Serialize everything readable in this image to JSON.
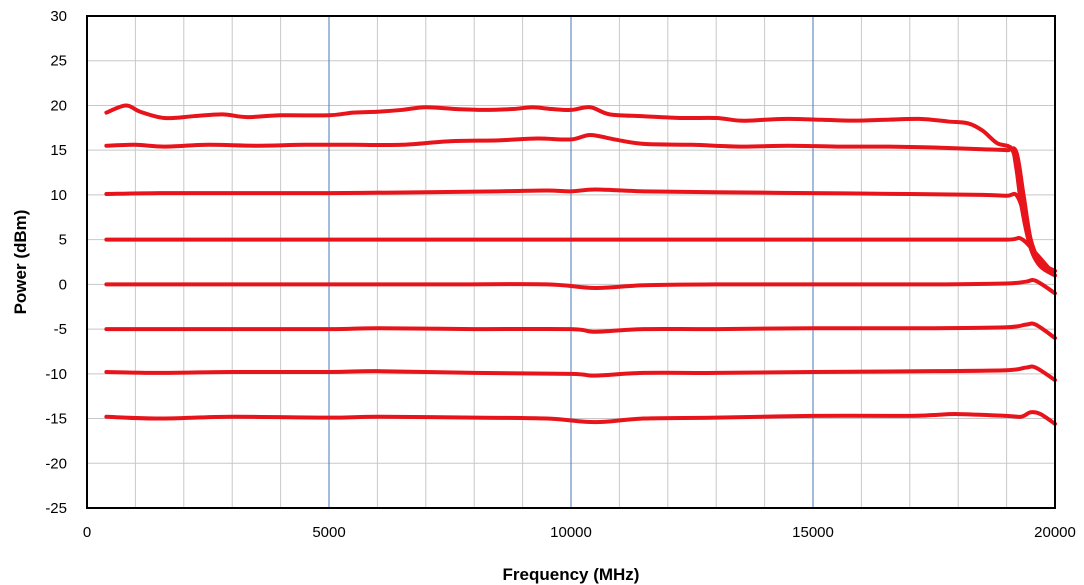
{
  "chart_data": {
    "type": "line",
    "title": "",
    "xlabel": "Frequency (MHz)",
    "ylabel": "Power (dBm)",
    "xlim": [
      0,
      20000
    ],
    "ylim": [
      -25,
      30
    ],
    "x_minor_step": 1000,
    "x_major_step": 5000,
    "y_step": 5,
    "x_tick_labels": [
      "0",
      "5000",
      "10000",
      "15000",
      "20000"
    ],
    "y_tick_labels": [
      "30",
      "25",
      "20",
      "15",
      "10",
      "5",
      "0",
      "-5",
      "-10",
      "-15",
      "-20",
      "-25"
    ],
    "grid": true,
    "legend": false,
    "line_color": "#e8141b",
    "series": [
      {
        "x": [
          400,
          800,
          1100,
          1600,
          2200,
          2800,
          3300,
          4000,
          5000,
          5500,
          6000,
          6500,
          7000,
          7600,
          8200,
          8800,
          9200,
          9600,
          10000,
          10400,
          10800,
          11500,
          12300,
          13000,
          13500,
          14000,
          14500,
          15200,
          15800,
          16500,
          17200,
          17800,
          18200,
          18500,
          18800,
          19100,
          19200,
          19300,
          19450,
          19600,
          19800,
          20000
        ],
        "y": [
          19.2,
          20.0,
          19.3,
          18.6,
          18.8,
          19.0,
          18.7,
          18.9,
          18.9,
          19.2,
          19.3,
          19.5,
          19.8,
          19.6,
          19.5,
          19.6,
          19.8,
          19.6,
          19.5,
          19.8,
          19.0,
          18.8,
          18.6,
          18.6,
          18.3,
          18.4,
          18.5,
          18.4,
          18.3,
          18.4,
          18.5,
          18.2,
          18.0,
          17.2,
          15.8,
          15.2,
          13.0,
          9.0,
          5.0,
          3.0,
          2.0,
          1.5
        ]
      },
      {
        "x": [
          400,
          1000,
          1600,
          2500,
          3500,
          4500,
          5500,
          6500,
          7500,
          8500,
          9300,
          10000,
          10400,
          10900,
          11500,
          12500,
          13500,
          14500,
          15500,
          16500,
          17500,
          18500,
          19000,
          19200,
          19350,
          19500,
          19700,
          20000
        ],
        "y": [
          15.5,
          15.6,
          15.4,
          15.6,
          15.5,
          15.6,
          15.6,
          15.6,
          16.0,
          16.1,
          16.3,
          16.2,
          16.7,
          16.2,
          15.7,
          15.6,
          15.4,
          15.5,
          15.4,
          15.4,
          15.3,
          15.1,
          15.0,
          14.8,
          10.0,
          5.0,
          2.5,
          1.5
        ]
      },
      {
        "x": [
          400,
          1500,
          3000,
          5000,
          7000,
          8500,
          9500,
          10000,
          10500,
          11500,
          13000,
          15000,
          17000,
          18500,
          19000,
          19200,
          19350,
          19500,
          19700,
          20000
        ],
        "y": [
          10.1,
          10.2,
          10.2,
          10.2,
          10.3,
          10.4,
          10.5,
          10.4,
          10.6,
          10.4,
          10.3,
          10.2,
          10.1,
          10.0,
          9.9,
          10.0,
          8.0,
          4.0,
          2.0,
          1.0
        ]
      },
      {
        "x": [
          400,
          2500,
          5000,
          7500,
          10000,
          12500,
          15000,
          17500,
          19000,
          19300,
          19600,
          20000
        ],
        "y": [
          5.0,
          5.0,
          5.0,
          5.0,
          5.0,
          5.0,
          5.0,
          5.0,
          5.0,
          5.1,
          3.5,
          1.0
        ]
      },
      {
        "x": [
          400,
          2500,
          5000,
          7500,
          9500,
          10500,
          11500,
          13000,
          15000,
          17500,
          19000,
          19400,
          19600,
          20000
        ],
        "y": [
          0.0,
          0.0,
          0.0,
          0.0,
          0.0,
          -0.4,
          -0.1,
          0.0,
          0.0,
          0.0,
          0.1,
          0.3,
          0.4,
          -1.0
        ]
      },
      {
        "x": [
          400,
          2500,
          5000,
          6000,
          8000,
          10000,
          10500,
          11500,
          13000,
          15000,
          17500,
          19000,
          19400,
          19600,
          20000
        ],
        "y": [
          -5.0,
          -5.0,
          -5.0,
          -4.9,
          -5.0,
          -5.0,
          -5.3,
          -5.0,
          -5.0,
          -4.9,
          -4.9,
          -4.8,
          -4.5,
          -4.5,
          -6.0
        ]
      },
      {
        "x": [
          400,
          1500,
          3000,
          5000,
          6000,
          8000,
          10000,
          10500,
          11500,
          13000,
          15000,
          17500,
          19000,
          19400,
          19600,
          20000
        ],
        "y": [
          -9.8,
          -9.9,
          -9.8,
          -9.8,
          -9.7,
          -9.9,
          -10.0,
          -10.2,
          -9.9,
          -9.9,
          -9.8,
          -9.7,
          -9.6,
          -9.3,
          -9.3,
          -10.7
        ]
      },
      {
        "x": [
          400,
          1500,
          3000,
          5000,
          6000,
          8000,
          9500,
          10500,
          11500,
          13000,
          15000,
          17000,
          17500,
          18000,
          19000,
          19300,
          19500,
          19700,
          20000
        ],
        "y": [
          -14.8,
          -15.0,
          -14.8,
          -14.9,
          -14.8,
          -14.9,
          -15.0,
          -15.4,
          -15.0,
          -14.9,
          -14.7,
          -14.7,
          -14.6,
          -14.5,
          -14.7,
          -14.8,
          -14.3,
          -14.5,
          -15.6
        ]
      }
    ]
  }
}
